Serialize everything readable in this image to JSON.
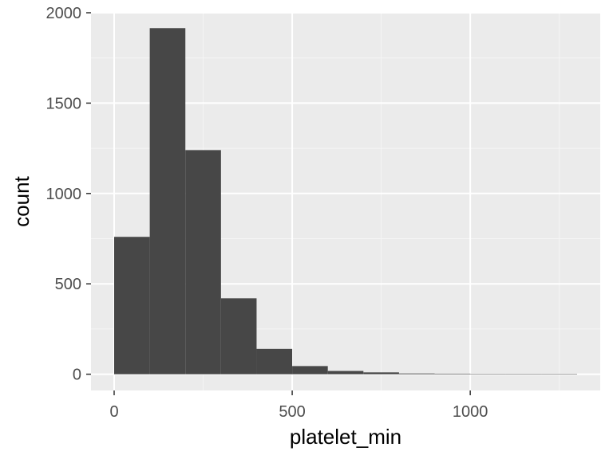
{
  "chart_data": {
    "type": "bar",
    "subtype": "histogram",
    "title": "",
    "xlabel": "platelet_min",
    "ylabel": "count",
    "xlim": [
      -65,
      1365
    ],
    "ylim": [
      -90,
      2000
    ],
    "x_ticks": [
      0,
      500,
      1000
    ],
    "y_ticks": [
      0,
      500,
      1000,
      1500,
      2000
    ],
    "x_tick_labels": [
      "0",
      "500",
      "1000"
    ],
    "y_tick_labels": [
      "0",
      "500",
      "1000",
      "1500",
      "2000"
    ],
    "bin_width": 100,
    "bins": [
      {
        "x0": 0,
        "x1": 100,
        "count": 760
      },
      {
        "x0": 100,
        "x1": 200,
        "count": 1915
      },
      {
        "x0": 200,
        "x1": 300,
        "count": 1240
      },
      {
        "x0": 300,
        "x1": 400,
        "count": 420
      },
      {
        "x0": 400,
        "x1": 500,
        "count": 140
      },
      {
        "x0": 500,
        "x1": 600,
        "count": 45
      },
      {
        "x0": 600,
        "x1": 700,
        "count": 18
      },
      {
        "x0": 700,
        "x1": 800,
        "count": 10
      },
      {
        "x0": 800,
        "x1": 900,
        "count": 4
      },
      {
        "x0": 900,
        "x1": 1000,
        "count": 3
      },
      {
        "x0": 1000,
        "x1": 1100,
        "count": 2
      },
      {
        "x0": 1100,
        "x1": 1200,
        "count": 1
      },
      {
        "x0": 1200,
        "x1": 1300,
        "count": 1
      }
    ],
    "grid": true,
    "legend": "none",
    "colors": {
      "panel_background": "#ebebeb",
      "grid_major": "#ffffff",
      "grid_minor": "#f5f5f5",
      "bar_fill": "#474747",
      "tick_color": "#333333"
    }
  }
}
